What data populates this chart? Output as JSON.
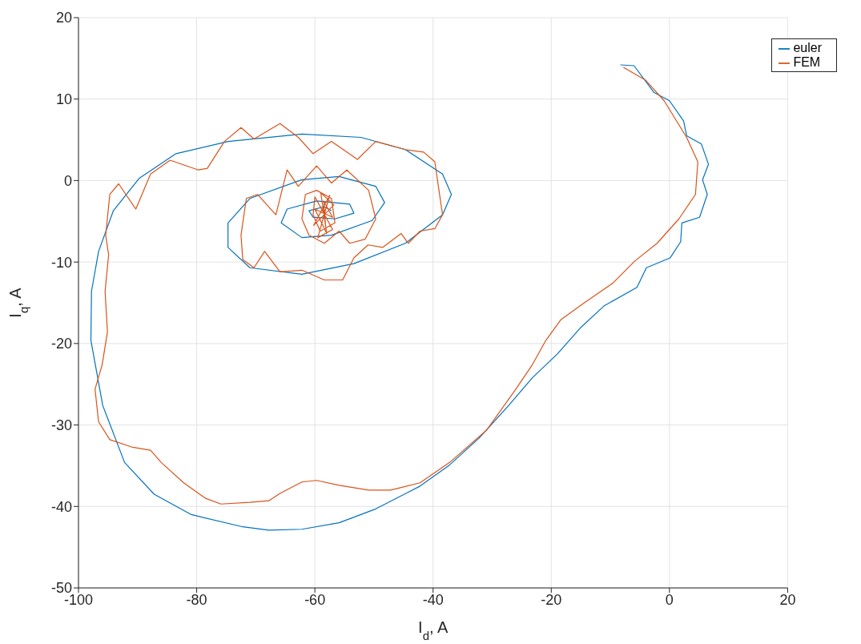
{
  "chart_data": {
    "type": "line",
    "xlabel": "I$_{d}$, A",
    "ylabel": "I$_{q}$, A",
    "xlim": [
      -100,
      20
    ],
    "xticks": [
      -100,
      -80,
      -60,
      -40,
      -20,
      0,
      20
    ],
    "ylim": [
      -50,
      20
    ],
    "yticks": [
      -50,
      -40,
      -30,
      -20,
      -10,
      0,
      10,
      20
    ],
    "grid": true,
    "legend": "top right",
    "marker": "none",
    "line_style": "solid",
    "series": [
      {
        "name": "euler",
        "color": "#0072bd",
        "x": [
          -8.3,
          -6.0,
          -2.6,
          0,
          2.4,
          2.9,
          5.4,
          6.6,
          5.6,
          6.4,
          5.1,
          2.1,
          1.9,
          0.1,
          -3.9,
          -5.5,
          -11.1,
          -15.1,
          -19.0,
          -23.2,
          -27.2,
          -32.2,
          -37.2,
          -42.2,
          -49.7,
          -55.9,
          -62.2,
          -67.8,
          -72.2,
          -80.9,
          -87.2,
          -92.2,
          -95.9,
          -97.9,
          -97.8,
          -96.6,
          -94.1,
          -89.7,
          -83.5,
          -74.7,
          -62.2,
          -52.2,
          -44.7,
          -38.4,
          -36.9,
          -38.4,
          -44.7,
          -53.4,
          -62.2,
          -71.0,
          -74.7,
          -74.7,
          -71.0,
          -62.2,
          -55.9,
          -49.7,
          -48.2,
          -50.3,
          -57.2,
          -62.2,
          -65.7,
          -64.7,
          -59.7,
          -54.1,
          -53.4,
          -56.6,
          -60.3,
          -61.0,
          -58.4,
          -57.2
        ],
        "values": [
          14.2,
          14.1,
          10.8,
          9.8,
          7.3,
          5.5,
          4.5,
          2.0,
          0.1,
          -1.7,
          -4.5,
          -5.2,
          -7.5,
          -9.5,
          -10.7,
          -13.1,
          -15.4,
          -18.1,
          -21.3,
          -24.2,
          -27.6,
          -31.6,
          -34.9,
          -37.5,
          -40.3,
          -42.0,
          -42.8,
          -42.9,
          -42.5,
          -41.0,
          -38.5,
          -34.6,
          -27.6,
          -19.6,
          -13.6,
          -8.7,
          -3.7,
          0.3,
          3.3,
          4.8,
          5.7,
          5.3,
          3.8,
          0.8,
          -1.7,
          -4.2,
          -7.7,
          -10.2,
          -11.5,
          -10.7,
          -8.2,
          -5.2,
          -2.2,
          0.1,
          0.5,
          -0.7,
          -2.7,
          -4.9,
          -6.7,
          -7.0,
          -5.2,
          -3.5,
          -2.5,
          -2.9,
          -4.0,
          -4.7,
          -4.5,
          -3.7,
          -3.2,
          -3.7
        ]
      },
      {
        "name": "FEM",
        "color": "#d95319",
        "x": [
          -7.8,
          -4.0,
          -0.9,
          2.9,
          4.8,
          4.4,
          1.6,
          -2.1,
          -5.9,
          -9.6,
          -14.6,
          -18.4,
          -20.9,
          -23.2,
          -26.0,
          -30.9,
          -37.2,
          -42.2,
          -47.2,
          -50.9,
          -55.9,
          -59.7,
          -62.2,
          -65.9,
          -67.8,
          -71.0,
          -75.9,
          -78.5,
          -82.2,
          -86.0,
          -87.8,
          -91.0,
          -94.7,
          -96.6,
          -97.2,
          -96.0,
          -95.1,
          -95.5,
          -94.9,
          -95.4,
          -94.7,
          -93.2,
          -90.3,
          -87.8,
          -84.5,
          -79.7,
          -78.2,
          -75.3,
          -72.5,
          -70.3,
          -65.9,
          -62.8,
          -60.3,
          -57.2,
          -52.8,
          -49.7,
          -44.7,
          -41.6,
          -39.7,
          -39.1,
          -38.4,
          -39.7,
          -42.2,
          -44.2,
          -45.4,
          -48.5,
          -51.0,
          -53.4,
          -55.3,
          -58.4,
          -62.2,
          -65.9,
          -68.5,
          -70.3,
          -72.2,
          -72.5,
          -71.6,
          -69.7,
          -66.6,
          -64.7,
          -62.8,
          -59.7,
          -57.2,
          -54.6,
          -50.9,
          -49.7,
          -51.5,
          -54.1,
          -55.9,
          -58.4,
          -61.0,
          -62.2,
          -61.6,
          -59.7,
          -57.2,
          -56.6,
          -59.1,
          -60.3,
          -60,
          -57,
          -59.5,
          -57.5,
          -60.2,
          -56.8,
          -59,
          -58,
          -60,
          -57,
          -58.5,
          -58.2,
          -58.5
        ],
        "values": [
          13.9,
          12.3,
          9.8,
          5.3,
          2.3,
          -1.7,
          -4.7,
          -7.7,
          -9.9,
          -12.6,
          -15.1,
          -17.1,
          -19.6,
          -22.6,
          -25.6,
          -30.6,
          -34.6,
          -37.1,
          -38.0,
          -38.0,
          -37.4,
          -36.8,
          -37.0,
          -38.4,
          -39.3,
          -39.5,
          -39.7,
          -39.0,
          -37.1,
          -34.6,
          -33.1,
          -32.7,
          -31.8,
          -29.6,
          -25.6,
          -22.6,
          -18.6,
          -13.6,
          -9.1,
          -6.7,
          -1.7,
          -0.4,
          -3.5,
          0.8,
          2.5,
          1.3,
          1.5,
          4.8,
          6.5,
          5.1,
          7.0,
          5.3,
          3.3,
          4.8,
          2.6,
          4.8,
          3.8,
          3.5,
          2.3,
          -0.7,
          -4.2,
          -5.9,
          -6.2,
          -7.7,
          -6.5,
          -8.2,
          -7.9,
          -9.5,
          -12.2,
          -12.2,
          -11.0,
          -11.2,
          -8.7,
          -10.7,
          -9.7,
          -6.7,
          -2.2,
          -1.7,
          -4.2,
          1.3,
          -0.7,
          1.8,
          -0.3,
          1.3,
          -1.2,
          -4.7,
          -7.2,
          -7.7,
          -6.2,
          -7.7,
          -6.7,
          -4.7,
          -1.7,
          -1.2,
          -2.2,
          -5.2,
          -6.2,
          -4.2,
          -2,
          -6,
          -7,
          -1.8,
          -5.5,
          -3,
          -1.5,
          -6.5,
          -3.5,
          -4.5,
          -2.5,
          -5.5,
          -4
        ]
      }
    ]
  }
}
